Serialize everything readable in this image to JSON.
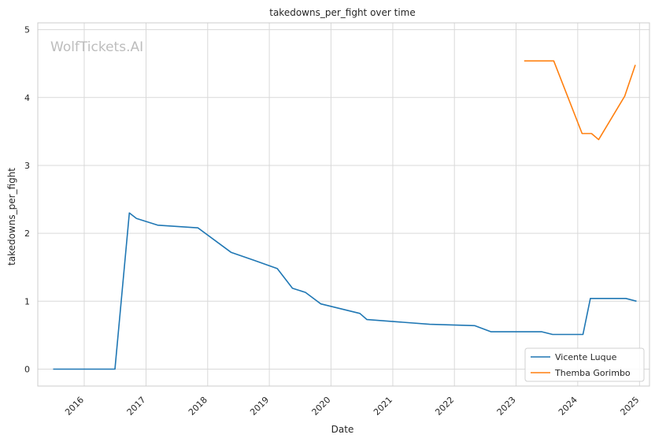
{
  "watermark": "WolfTickets.AI",
  "chart_data": {
    "type": "line",
    "title": "takedowns_per_fight over time",
    "xlabel": "Date",
    "ylabel": "takedowns_per_fight",
    "x_ticks": [
      "2016",
      "2017",
      "2018",
      "2019",
      "2020",
      "2021",
      "2022",
      "2023",
      "2024",
      "2025"
    ],
    "y_ticks": [
      "0",
      "1",
      "2",
      "3",
      "4",
      "5"
    ],
    "xlim": [
      "2015-04-01",
      "2025-03-01"
    ],
    "ylim": [
      -0.25,
      5.1
    ],
    "grid": true,
    "legend_position": "lower-right",
    "series": [
      {
        "name": "Vicente Luque",
        "color": "#1f77b4",
        "points": [
          [
            "2015-07-01",
            0
          ],
          [
            "2016-07-01",
            0
          ],
          [
            "2016-09-24",
            2.3
          ],
          [
            "2016-11-05",
            2.22
          ],
          [
            "2017-03-11",
            2.12
          ],
          [
            "2017-11-04",
            2.08
          ],
          [
            "2018-05-19",
            1.72
          ],
          [
            "2018-10-06",
            1.6
          ],
          [
            "2019-02-17",
            1.48
          ],
          [
            "2019-05-18",
            1.19
          ],
          [
            "2019-08-03",
            1.13
          ],
          [
            "2019-11-02",
            0.96
          ],
          [
            "2020-06-20",
            0.82
          ],
          [
            "2020-08-01",
            0.73
          ],
          [
            "2021-03-01",
            0.69
          ],
          [
            "2021-08-07",
            0.66
          ],
          [
            "2022-04-30",
            0.64
          ],
          [
            "2022-08-06",
            0.55
          ],
          [
            "2023-06-03",
            0.55
          ],
          [
            "2023-08-05",
            0.51
          ],
          [
            "2024-02-01",
            0.51
          ],
          [
            "2024-03-16",
            1.04
          ],
          [
            "2024-10-12",
            1.04
          ],
          [
            "2024-12-14",
            1.0
          ]
        ]
      },
      {
        "name": "Themba Gorimbo",
        "color": "#ff7f0e",
        "points": [
          [
            "2023-02-18",
            4.54
          ],
          [
            "2023-08-12",
            4.54
          ],
          [
            "2024-01-27",
            3.47
          ],
          [
            "2024-03-23",
            3.47
          ],
          [
            "2024-05-04",
            3.38
          ],
          [
            "2024-10-05",
            4.02
          ],
          [
            "2024-12-07",
            4.48
          ]
        ]
      }
    ]
  }
}
